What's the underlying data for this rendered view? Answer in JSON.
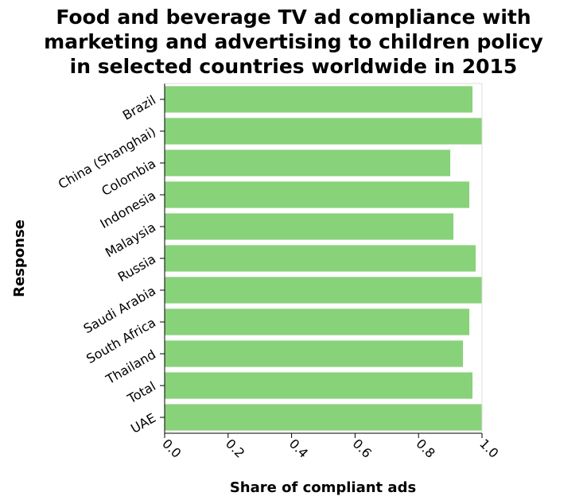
{
  "chart_data": {
    "type": "bar",
    "orientation": "horizontal",
    "title_lines": [
      "Food and beverage TV ad compliance with",
      "marketing and advertising to children policy",
      "in selected countries worldwide in 2015"
    ],
    "xlabel": "Share of compliant ads",
    "ylabel": "Response",
    "categories": [
      "Brazil",
      "China (Shanghai)",
      "Colombia",
      "Indonesia",
      "Malaysia",
      "Russia",
      "Saudi Arabia",
      "South Africa",
      "Thailand",
      "Total",
      "UAE"
    ],
    "values": [
      0.97,
      1.0,
      0.9,
      0.96,
      0.91,
      0.98,
      1.0,
      0.96,
      0.94,
      0.97,
      1.0
    ],
    "xlim": [
      0,
      1
    ],
    "xticks": [
      "0.0",
      "0.2",
      "0.4",
      "0.6",
      "0.8",
      "1.0"
    ],
    "bar_color": "#88d27a",
    "grid": false
  }
}
